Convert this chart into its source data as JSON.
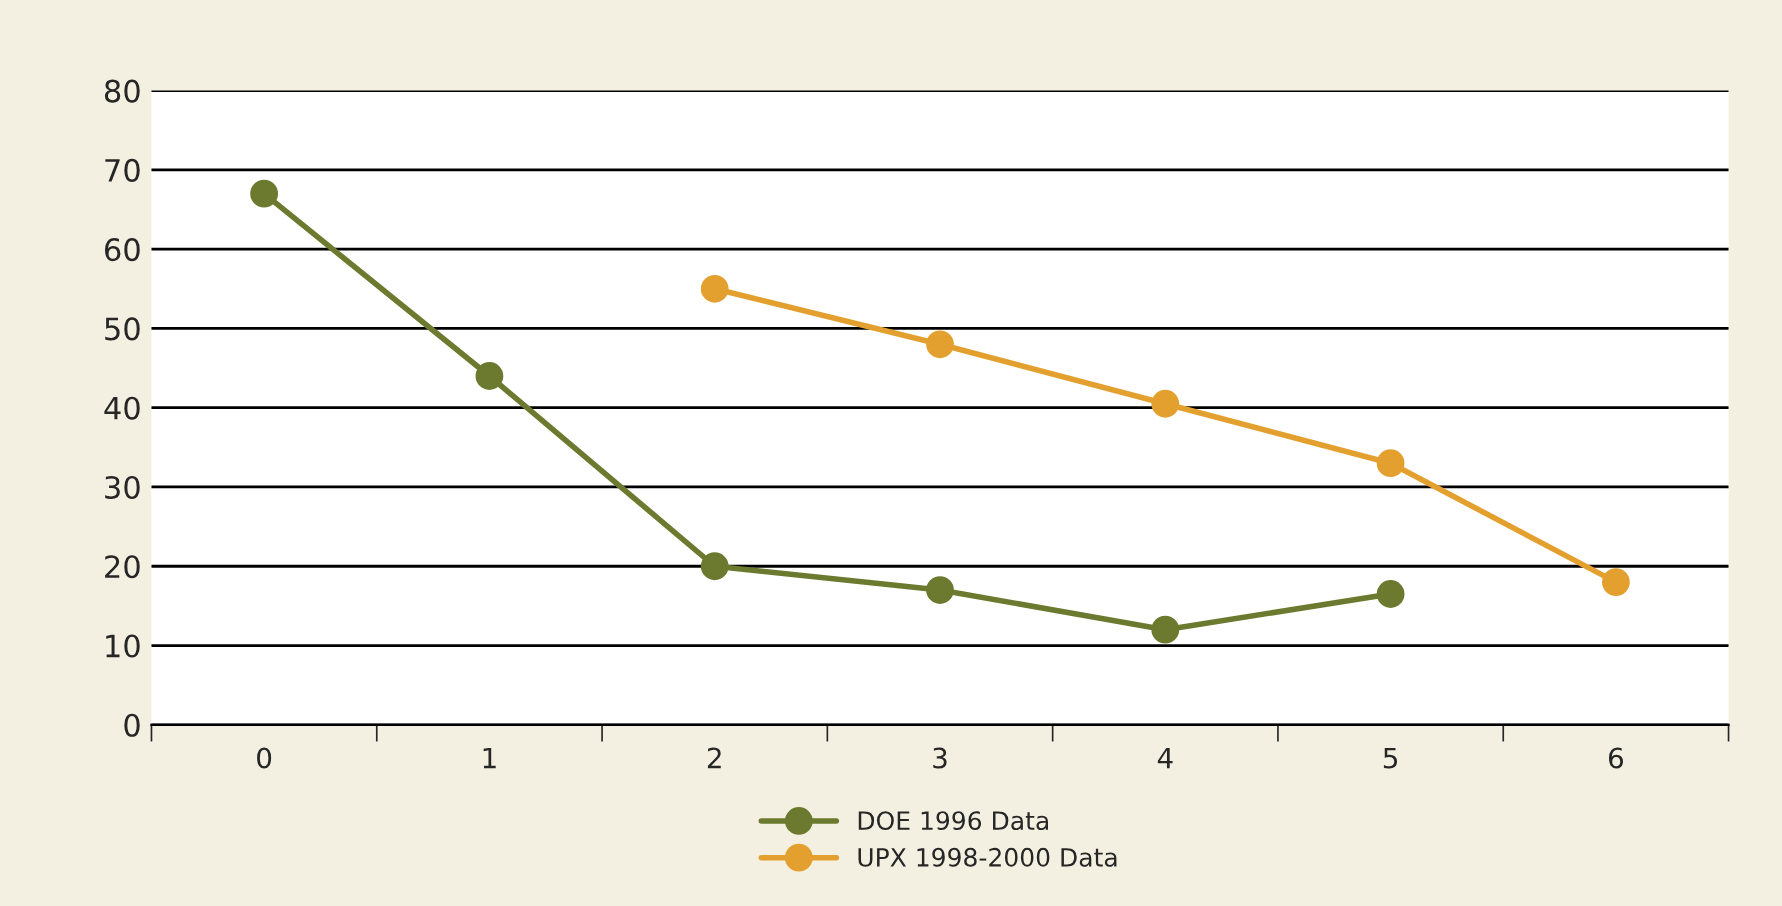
{
  "chart_data": {
    "type": "line",
    "categories": [
      "0",
      "1",
      "2",
      "3",
      "4",
      "5",
      "6"
    ],
    "series": [
      {
        "name": "DOE 1996 Data",
        "color": "#6b7a2e",
        "values": [
          67,
          44,
          20,
          17,
          12,
          16.5,
          null
        ]
      },
      {
        "name": "UPX 1998-2000 Data",
        "color": "#e3a02f",
        "values": [
          null,
          null,
          55,
          48,
          40.5,
          33,
          18
        ]
      }
    ],
    "ylim": [
      0,
      80
    ],
    "yticks": [
      0,
      10,
      20,
      30,
      40,
      50,
      60,
      70,
      80
    ],
    "grid": "y",
    "legend": "bottom",
    "marker": "circle",
    "line_style": "solid"
  }
}
